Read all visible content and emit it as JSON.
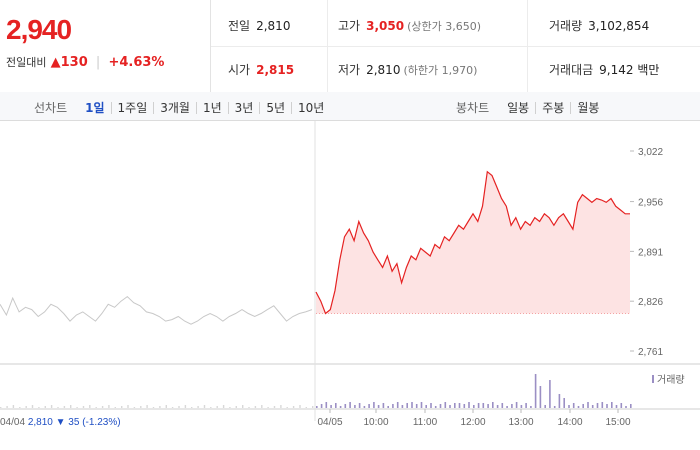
{
  "summary": {
    "price": "2,940",
    "change_label": "전일대비",
    "change_arrow": "▲",
    "change_value": "130",
    "change_pct": "+4.63%"
  },
  "stats": {
    "prev_label": "전일",
    "prev_value": "2,810",
    "high_label": "고가",
    "high_value": "3,050",
    "upper_limit": "(상한가 3,650)",
    "volume_label": "거래량",
    "volume_value": "3,102,854",
    "open_label": "시가",
    "open_value": "2,815",
    "low_label": "저가",
    "low_value": "2,810",
    "lower_limit": "(하한가 1,970)",
    "amount_label": "거래대금",
    "amount_value": "9,142 백만"
  },
  "line_chart_tabs": {
    "label": "선차트",
    "items": [
      "1일",
      "1주일",
      "3개월",
      "1년",
      "3년",
      "5년",
      "10년"
    ],
    "active": "1일"
  },
  "candle_chart_tabs": {
    "label": "봉차트",
    "items": [
      "일봉",
      "주봉",
      "월봉"
    ]
  },
  "colors": {
    "up": "#e52222",
    "prev_day_line": "#c8c8c8",
    "volume": "#9b8fc4",
    "active_tab": "#1f4fc4"
  },
  "chart_data": {
    "type": "line",
    "y_ticks": [
      "3,022",
      "2,956",
      "2,891",
      "2,826",
      "2,761"
    ],
    "ylim": [
      2761,
      3022
    ],
    "baseline": 2810,
    "x_ticks": [
      "04/05",
      "10:00",
      "11:00",
      "12:00",
      "13:00",
      "14:00",
      "15:00"
    ],
    "prev_day": {
      "date": "04/04",
      "close": "2,810",
      "arrow": "▼",
      "change": "35",
      "pct": "(-1.23%)",
      "values": [
        2822,
        2808,
        2830,
        2812,
        2818,
        2815,
        2806,
        2812,
        2822,
        2818,
        2810,
        2800,
        2808,
        2812,
        2806,
        2800,
        2810,
        2822,
        2818,
        2826,
        2832,
        2824,
        2820,
        2812,
        2810,
        2806,
        2800,
        2802,
        2806,
        2800,
        2796,
        2800,
        2806,
        2810,
        2806,
        2800,
        2806,
        2810,
        2815,
        2810,
        2806,
        2810,
        2815,
        2820,
        2810,
        2800,
        2806,
        2810,
        2812,
        2815
      ]
    },
    "today": {
      "values": [
        2838,
        2826,
        2810,
        2815,
        2840,
        2880,
        2910,
        2920,
        2905,
        2930,
        2915,
        2905,
        2890,
        2880,
        2870,
        2885,
        2865,
        2875,
        2850,
        2870,
        2885,
        2880,
        2895,
        2890,
        2885,
        2900,
        2895,
        2910,
        2905,
        2915,
        2925,
        2920,
        2930,
        2940,
        2930,
        2950,
        2995,
        2990,
        2975,
        2960,
        2950,
        2925,
        2935,
        2920,
        2930,
        2925,
        2935,
        2930,
        2940,
        2935,
        2925,
        2935,
        2940,
        2930,
        2920,
        2955,
        2965,
        2960,
        2955,
        2960,
        2958,
        2955,
        2960,
        2950,
        2945,
        2940,
        2940
      ]
    },
    "volume": {
      "legend": "거래량"
    }
  }
}
